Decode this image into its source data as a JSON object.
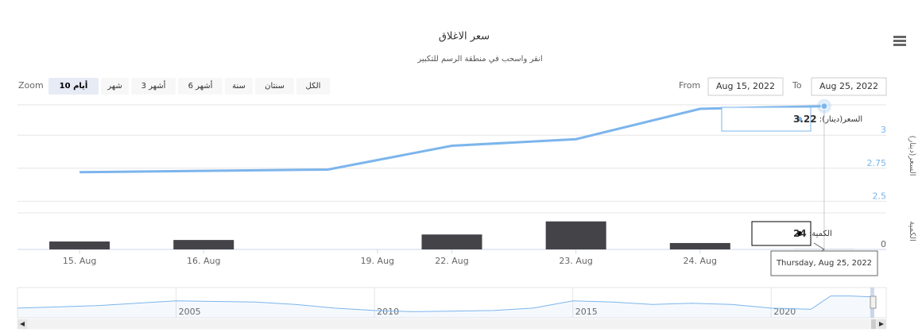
{
  "chart_data": {
    "type": "stock",
    "title": "سعر الاغلاق",
    "subtitle": "انقر واسحب في منطقة الرسم للتكبير",
    "zoom_label": "Zoom",
    "range_buttons": [
      "10 أيام",
      "شهر",
      "3 أشهر",
      "6 أشهر",
      "سنة",
      "سنتان",
      "الكل"
    ],
    "selected_button": 0,
    "from_label": "From",
    "from_date": "Aug 15, 2022",
    "to_label": "To",
    "to_date": "Aug 25, 2022",
    "xlim": [
      -0.5,
      6.5
    ],
    "xticks": [
      {
        "value": 0,
        "label": "15. Aug"
      },
      {
        "value": 1,
        "label": "16. Aug"
      },
      {
        "value": 2.4,
        "label": "19. Aug"
      },
      {
        "value": 3,
        "label": "22. Aug"
      },
      {
        "value": 4,
        "label": "23. Aug"
      },
      {
        "value": 5,
        "label": "24. Aug"
      }
    ],
    "series": [
      {
        "name": "السعر(دينار)",
        "color": "#7cb5ec",
        "values": [
          2.72,
          2.73,
          2.74,
          2.92,
          2.97,
          3.2,
          3.22
        ]
      },
      {
        "name": "الكمية",
        "color": "#434348",
        "axis": "y2",
        "values": [
          2600,
          3100,
          0,
          4900,
          9200,
          2100,
          24
        ]
      }
    ],
    "ylabel": "السعر(دينار)",
    "ylim": [
      2.46,
      3.23
    ],
    "yticks": [
      2.5,
      2.75,
      3
    ],
    "y2label": "الكمية",
    "y2lim": [
      0,
      12000
    ],
    "y2ticks": [
      0
    ],
    "grid": true,
    "tooltip_date": "Thursday, Aug 25, 2022",
    "tooltip_index": 6,
    "navigator": {
      "x": [
        2001,
        2002,
        2003,
        2004,
        2005,
        2006,
        2007,
        2008,
        2009,
        2010,
        2011,
        2012,
        2013,
        2014,
        2015,
        2016,
        2017,
        2018,
        2019,
        2020,
        2021,
        2021.5,
        2022,
        2022.6
      ],
      "values": [
        2.3,
        2.4,
        2.5,
        2.7,
        2.9,
        2.85,
        2.8,
        2.6,
        2.3,
        2.1,
        2.0,
        2.05,
        2.1,
        2.3,
        2.9,
        2.8,
        2.6,
        2.7,
        2.6,
        2.3,
        2.2,
        3.3,
        3.3,
        3.22
      ],
      "xlim": [
        2001,
        2022.6
      ],
      "xticks": [
        2005,
        2010,
        2015,
        2020
      ],
      "ylim": [
        1.5,
        4
      ]
    }
  }
}
